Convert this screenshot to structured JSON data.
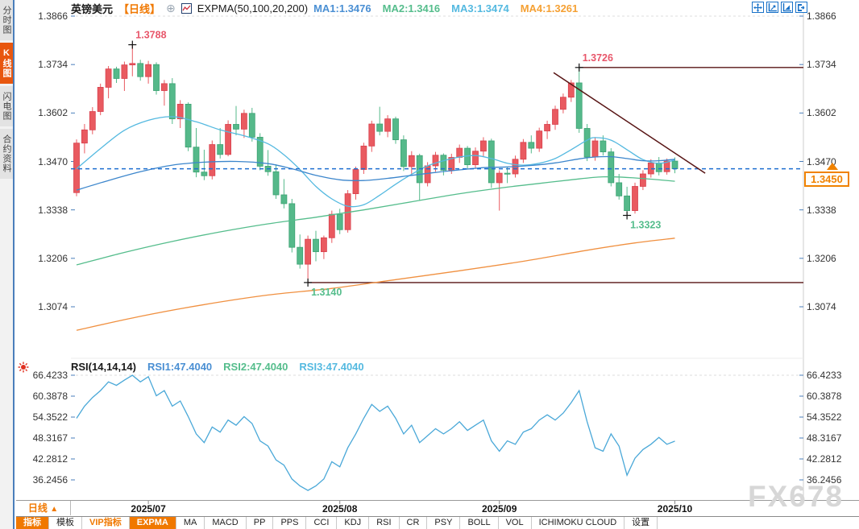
{
  "header": {
    "symbol": "英镑美元",
    "period_tag": "【日线】",
    "indicator_title": "EXPMA(50,100,20,200)",
    "ma_values": [
      {
        "label": "MA1:1.3476",
        "color": "#4a8fd3"
      },
      {
        "label": "MA2:1.3416",
        "color": "#55bd8c"
      },
      {
        "label": "MA3:1.3474",
        "color": "#54b9e0"
      },
      {
        "label": "MA4:1.3261",
        "color": "#f5a033"
      }
    ]
  },
  "sidebar": {
    "items": [
      {
        "label": "分时图",
        "active": false
      },
      {
        "label": "K线图",
        "active": true
      },
      {
        "label": "闪电图",
        "active": false
      },
      {
        "label": "合约资料",
        "active": false
      }
    ]
  },
  "toolbar_icons": [
    "pan-crosshair-icon",
    "scale-axis-icon",
    "zoom-axis-icon",
    "exit-chart-icon"
  ],
  "price_badge": {
    "value": "1.3450",
    "color": "#f08200"
  },
  "rsi_header": {
    "title": "RSI(14,14,14)",
    "values": [
      {
        "label": "RSI1:47.4040",
        "color": "#4a8fd3"
      },
      {
        "label": "RSI2:47.4040",
        "color": "#55bd8c"
      },
      {
        "label": "RSI3:47.4040",
        "color": "#54b9e0"
      }
    ]
  },
  "bottom": {
    "period_button": "日线",
    "tabs": [
      {
        "label": "指标",
        "style": "active"
      },
      {
        "label": "模板",
        "style": "normal"
      },
      {
        "label": "VIP指标",
        "style": "vip"
      },
      {
        "label": "EXPMA",
        "style": "active"
      },
      {
        "label": "MA",
        "style": "normal"
      },
      {
        "label": "MACD",
        "style": "normal"
      },
      {
        "label": "PP",
        "style": "normal"
      },
      {
        "label": "PPS",
        "style": "normal"
      },
      {
        "label": "CCI",
        "style": "normal"
      },
      {
        "label": "KDJ",
        "style": "normal"
      },
      {
        "label": "RSI",
        "style": "normal"
      },
      {
        "label": "CR",
        "style": "normal"
      },
      {
        "label": "PSY",
        "style": "normal"
      },
      {
        "label": "BOLL",
        "style": "normal"
      },
      {
        "label": "VOL",
        "style": "normal"
      },
      {
        "label": "ICHIMOKU CLOUD",
        "style": "normal"
      },
      {
        "label": "设置",
        "style": "normal"
      }
    ]
  },
  "watermark": "FX678",
  "chart_data": {
    "type": "candlestick+rsi",
    "title": "英镑美元 GBP/USD 日线 with EXPMA(50,100,20,200) and RSI(14,14,14)",
    "main": {
      "ylabels": [
        "1.3866",
        "1.3734",
        "1.3602",
        "1.3470",
        "1.3338",
        "1.3206",
        "1.3074"
      ],
      "ymax": 1.3866,
      "ymin": 1.3074,
      "up_color": "#e95a60",
      "up_border": "#d8414e",
      "down_color": "#55b98a",
      "down_border": "#3da273",
      "current_price": 1.345,
      "candles": [
        [
          1.3385,
          1.353,
          1.3375,
          1.352
        ],
        [
          1.352,
          1.3572,
          1.3492,
          1.3556
        ],
        [
          1.3556,
          1.3618,
          1.3544,
          1.3606
        ],
        [
          1.3606,
          1.3682,
          1.3596,
          1.3672
        ],
        [
          1.3672,
          1.373,
          1.3642,
          1.3722
        ],
        [
          1.3722,
          1.3728,
          1.3684,
          1.3696
        ],
        [
          1.3696,
          1.3742,
          1.3662,
          1.3733
        ],
        [
          1.3733,
          1.3788,
          1.3702,
          1.3737
        ],
        [
          1.3737,
          1.3747,
          1.369,
          1.3701
        ],
        [
          1.3701,
          1.3744,
          1.3682,
          1.3734
        ],
        [
          1.3734,
          1.374,
          1.3652,
          1.3663
        ],
        [
          1.3663,
          1.3692,
          1.3622,
          1.3682
        ],
        [
          1.3682,
          1.3697,
          1.3572,
          1.3586
        ],
        [
          1.3586,
          1.3637,
          1.3561,
          1.3626
        ],
        [
          1.3626,
          1.3631,
          1.3498,
          1.3509
        ],
        [
          1.3509,
          1.3561,
          1.3427,
          1.3441
        ],
        [
          1.3441,
          1.3502,
          1.3419,
          1.3431
        ],
        [
          1.3431,
          1.3527,
          1.3421,
          1.3516
        ],
        [
          1.3516,
          1.3561,
          1.3478,
          1.3489
        ],
        [
          1.3489,
          1.3582,
          1.3484,
          1.3571
        ],
        [
          1.3571,
          1.3621,
          1.3541,
          1.3558
        ],
        [
          1.3558,
          1.3611,
          1.3534,
          1.3601
        ],
        [
          1.3601,
          1.3616,
          1.3524,
          1.3536
        ],
        [
          1.3536,
          1.3547,
          1.3446,
          1.3457
        ],
        [
          1.3457,
          1.3501,
          1.3431,
          1.3442
        ],
        [
          1.3442,
          1.3462,
          1.3368,
          1.3379
        ],
        [
          1.3379,
          1.3422,
          1.3342,
          1.3355
        ],
        [
          1.3355,
          1.3368,
          1.3222,
          1.3236
        ],
        [
          1.3236,
          1.3271,
          1.3178,
          1.319
        ],
        [
          1.319,
          1.3268,
          1.314,
          1.3258
        ],
        [
          1.3258,
          1.3281,
          1.3198,
          1.3224
        ],
        [
          1.3224,
          1.3268,
          1.3204,
          1.3262
        ],
        [
          1.3262,
          1.3336,
          1.3248,
          1.3326
        ],
        [
          1.3326,
          1.3341,
          1.3272,
          1.3284
        ],
        [
          1.3284,
          1.3392,
          1.3276,
          1.3382
        ],
        [
          1.3382,
          1.3456,
          1.3366,
          1.3448
        ],
        [
          1.3448,
          1.3521,
          1.3436,
          1.3512
        ],
        [
          1.3512,
          1.3581,
          1.3496,
          1.3572
        ],
        [
          1.3572,
          1.3619,
          1.3541,
          1.3552
        ],
        [
          1.3552,
          1.3596,
          1.3536,
          1.3586
        ],
        [
          1.3586,
          1.3592,
          1.3518,
          1.3529
        ],
        [
          1.3529,
          1.3541,
          1.3444,
          1.3456
        ],
        [
          1.3456,
          1.3498,
          1.3436,
          1.3486
        ],
        [
          1.3486,
          1.3491,
          1.3364,
          1.3412
        ],
        [
          1.3412,
          1.3468,
          1.3402,
          1.3458
        ],
        [
          1.3458,
          1.3496,
          1.3442,
          1.3487
        ],
        [
          1.3487,
          1.3492,
          1.3432,
          1.3446
        ],
        [
          1.3446,
          1.3491,
          1.3436,
          1.3481
        ],
        [
          1.3481,
          1.3516,
          1.3466,
          1.3506
        ],
        [
          1.3506,
          1.3512,
          1.3448,
          1.3461
        ],
        [
          1.3461,
          1.3508,
          1.3451,
          1.3498
        ],
        [
          1.3498,
          1.3536,
          1.3482,
          1.3526
        ],
        [
          1.3526,
          1.3532,
          1.3398,
          1.3412
        ],
        [
          1.3412,
          1.3446,
          1.3336,
          1.3438
        ],
        [
          1.3438,
          1.3454,
          1.3411,
          1.3436
        ],
        [
          1.3436,
          1.3486,
          1.3426,
          1.3476
        ],
        [
          1.3476,
          1.3531,
          1.3466,
          1.3522
        ],
        [
          1.3522,
          1.3541,
          1.3492,
          1.3506
        ],
        [
          1.3506,
          1.3562,
          1.3496,
          1.3553
        ],
        [
          1.3553,
          1.3581,
          1.3531,
          1.3571
        ],
        [
          1.3571,
          1.3622,
          1.3556,
          1.3612
        ],
        [
          1.3612,
          1.3655,
          1.3601,
          1.3645
        ],
        [
          1.3645,
          1.3692,
          1.3632,
          1.3684
        ],
        [
          1.3684,
          1.3726,
          1.3548,
          1.356
        ],
        [
          1.356,
          1.3572,
          1.3471,
          1.3482
        ],
        [
          1.3482,
          1.3536,
          1.3472,
          1.3526
        ],
        [
          1.3526,
          1.3541,
          1.3486,
          1.3496
        ],
        [
          1.3496,
          1.3506,
          1.3402,
          1.3412
        ],
        [
          1.3412,
          1.3436,
          1.3366,
          1.3376
        ],
        [
          1.3376,
          1.3401,
          1.3323,
          1.3336
        ],
        [
          1.3336,
          1.3412,
          1.3328,
          1.3402
        ],
        [
          1.3402,
          1.3446,
          1.3392,
          1.3436
        ],
        [
          1.3436,
          1.3476,
          1.3426,
          1.3466
        ],
        [
          1.3466,
          1.3482,
          1.3432,
          1.3442
        ],
        [
          1.3442,
          1.3478,
          1.3434,
          1.3471
        ],
        [
          1.3471,
          1.3481,
          1.3438,
          1.345
        ]
      ],
      "ma_lines": [
        {
          "name": "EMA20",
          "color": "#54b9e0",
          "points": [
            [
              0,
              1.345
            ],
            [
              3,
              1.3505
            ],
            [
              6,
              1.3555
            ],
            [
              9,
              1.3582
            ],
            [
              12,
              1.3592
            ],
            [
              15,
              1.3578
            ],
            [
              18,
              1.3556
            ],
            [
              21,
              1.354
            ],
            [
              24,
              1.3518
            ],
            [
              26,
              1.3488
            ],
            [
              28,
              1.3448
            ],
            [
              30,
              1.3402
            ],
            [
              32,
              1.3368
            ],
            [
              34,
              1.3348
            ],
            [
              36,
              1.3352
            ],
            [
              38,
              1.3378
            ],
            [
              40,
              1.3408
            ],
            [
              42,
              1.3435
            ],
            [
              44,
              1.3458
            ],
            [
              46,
              1.3472
            ],
            [
              48,
              1.3482
            ],
            [
              50,
              1.3486
            ],
            [
              52,
              1.3478
            ],
            [
              54,
              1.3465
            ],
            [
              56,
              1.346
            ],
            [
              58,
              1.3465
            ],
            [
              60,
              1.3478
            ],
            [
              62,
              1.3502
            ],
            [
              64,
              1.3528
            ],
            [
              65,
              1.3535
            ],
            [
              67,
              1.3528
            ],
            [
              69,
              1.3502
            ],
            [
              71,
              1.3475
            ],
            [
              73,
              1.3465
            ],
            [
              75,
              1.3474
            ]
          ]
        },
        {
          "name": "EMA50",
          "color": "#3c86cc",
          "points": [
            [
              0,
              1.3392
            ],
            [
              4,
              1.3418
            ],
            [
              8,
              1.3442
            ],
            [
              12,
              1.346
            ],
            [
              16,
              1.3468
            ],
            [
              20,
              1.347
            ],
            [
              24,
              1.3464
            ],
            [
              27,
              1.345
            ],
            [
              30,
              1.3432
            ],
            [
              33,
              1.342
            ],
            [
              36,
              1.3418
            ],
            [
              39,
              1.3424
            ],
            [
              42,
              1.3432
            ],
            [
              45,
              1.344
            ],
            [
              48,
              1.3447
            ],
            [
              51,
              1.3453
            ],
            [
              54,
              1.3455
            ],
            [
              57,
              1.3459
            ],
            [
              60,
              1.3466
            ],
            [
              63,
              1.3477
            ],
            [
              65,
              1.3482
            ],
            [
              67,
              1.3483
            ],
            [
              69,
              1.3478
            ],
            [
              71,
              1.3472
            ],
            [
              73,
              1.3472
            ],
            [
              75,
              1.3476
            ]
          ]
        },
        {
          "name": "EMA100",
          "color": "#55bd8c",
          "points": [
            [
              0,
              1.3188
            ],
            [
              6,
              1.3222
            ],
            [
              12,
              1.3252
            ],
            [
              18,
              1.3278
            ],
            [
              24,
              1.33
            ],
            [
              30,
              1.3318
            ],
            [
              36,
              1.3338
            ],
            [
              42,
              1.336
            ],
            [
              48,
              1.3382
            ],
            [
              54,
              1.34
            ],
            [
              58,
              1.341
            ],
            [
              62,
              1.342
            ],
            [
              66,
              1.3428
            ],
            [
              70,
              1.3425
            ],
            [
              75,
              1.3416
            ]
          ]
        },
        {
          "name": "EMA200",
          "color": "#f09040",
          "points": [
            [
              0,
              1.301
            ],
            [
              8,
              1.3048
            ],
            [
              16,
              1.308
            ],
            [
              24,
              1.3106
            ],
            [
              32,
              1.3124
            ],
            [
              40,
              1.3148
            ],
            [
              48,
              1.3172
            ],
            [
              56,
              1.3198
            ],
            [
              64,
              1.3228
            ],
            [
              70,
              1.3248
            ],
            [
              75,
              1.3261
            ]
          ]
        }
      ],
      "annotations": [
        {
          "text": "1.3788",
          "index": 7,
          "price": 1.3788,
          "color": "#e8566a",
          "type": "high",
          "cross": true
        },
        {
          "text": "1.3726",
          "index": 63,
          "price": 1.3726,
          "color": "#e8566a",
          "type": "high",
          "cross": true
        },
        {
          "text": "1.3323",
          "index": 69,
          "price": 1.3323,
          "color": "#55bd8c",
          "type": "low",
          "cross": true
        },
        {
          "text": "1.3140",
          "index": 29,
          "price": 1.314,
          "color": "#55bd8c",
          "type": "low",
          "cross": true
        }
      ],
      "rays": [
        {
          "price": 1.3726,
          "from_index": 63
        },
        {
          "price": 1.314,
          "from_index": 29
        }
      ],
      "trendline": {
        "from": [
          59.8,
          1.3712
        ],
        "to": [
          78.8,
          1.3438
        ]
      }
    },
    "rsi": {
      "ylabels": [
        "66.4233",
        "60.3878",
        "54.3522",
        "48.3167",
        "42.2812",
        "36.2456"
      ],
      "color": "#4aa8d8",
      "values": [
        54,
        57.5,
        60,
        62,
        64.5,
        63.5,
        65,
        66.4,
        64.5,
        66,
        60.5,
        62,
        57.5,
        59,
        54.5,
        49.5,
        47,
        51.5,
        50,
        53.5,
        52,
        54.5,
        52.5,
        47.5,
        46,
        42,
        40.5,
        36.5,
        34.5,
        33.2,
        34.5,
        36.5,
        41.5,
        40,
        45.5,
        49.5,
        54,
        58,
        56,
        57.5,
        54,
        49.5,
        52,
        47,
        49,
        51,
        49.5,
        51,
        53,
        50.5,
        52,
        53.5,
        47.5,
        44.5,
        47.5,
        46.5,
        50,
        51,
        53.5,
        55,
        53.5,
        55.5,
        58.5,
        62,
        53,
        45.5,
        44.5,
        49.5,
        46,
        37.6,
        42.5,
        45,
        46.5,
        48.5,
        46.5,
        47.4
      ]
    },
    "xaxis": {
      "labels": [
        {
          "text": "2025/07",
          "index": 9
        },
        {
          "text": "2025/08",
          "index": 33
        },
        {
          "text": "2025/09",
          "index": 53
        },
        {
          "text": "2025/10",
          "index": 75
        }
      ]
    }
  }
}
